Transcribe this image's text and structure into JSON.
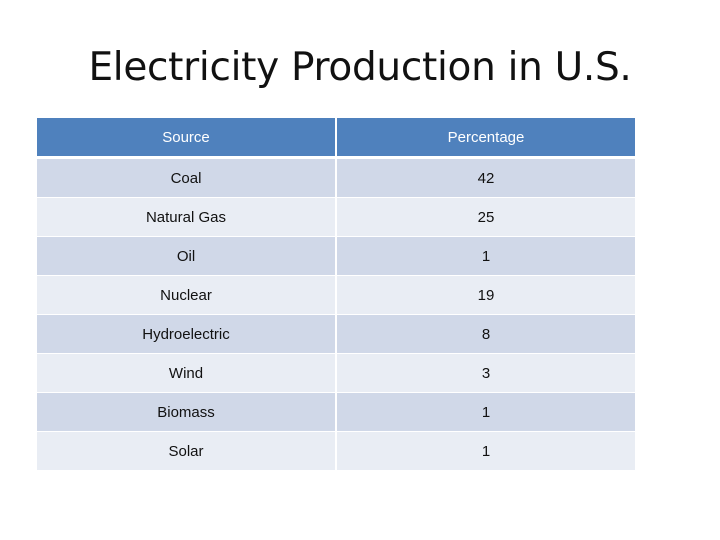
{
  "title": "Electricity Production in U.S.",
  "table": {
    "headers": [
      "Source",
      "Percentage"
    ],
    "rows": [
      {
        "source": "Coal",
        "percentage": "42"
      },
      {
        "source": "Natural Gas",
        "percentage": "25"
      },
      {
        "source": "Oil",
        "percentage": "1"
      },
      {
        "source": "Nuclear",
        "percentage": "19"
      },
      {
        "source": "Hydroelectric",
        "percentage": "8"
      },
      {
        "source": "Wind",
        "percentage": "3"
      },
      {
        "source": "Biomass",
        "percentage": "1"
      },
      {
        "source": "Solar",
        "percentage": "1"
      }
    ]
  },
  "colors": {
    "header_bg": "#4f81bd",
    "row_odd_bg": "#d0d8e8",
    "row_even_bg": "#e9edf4"
  }
}
